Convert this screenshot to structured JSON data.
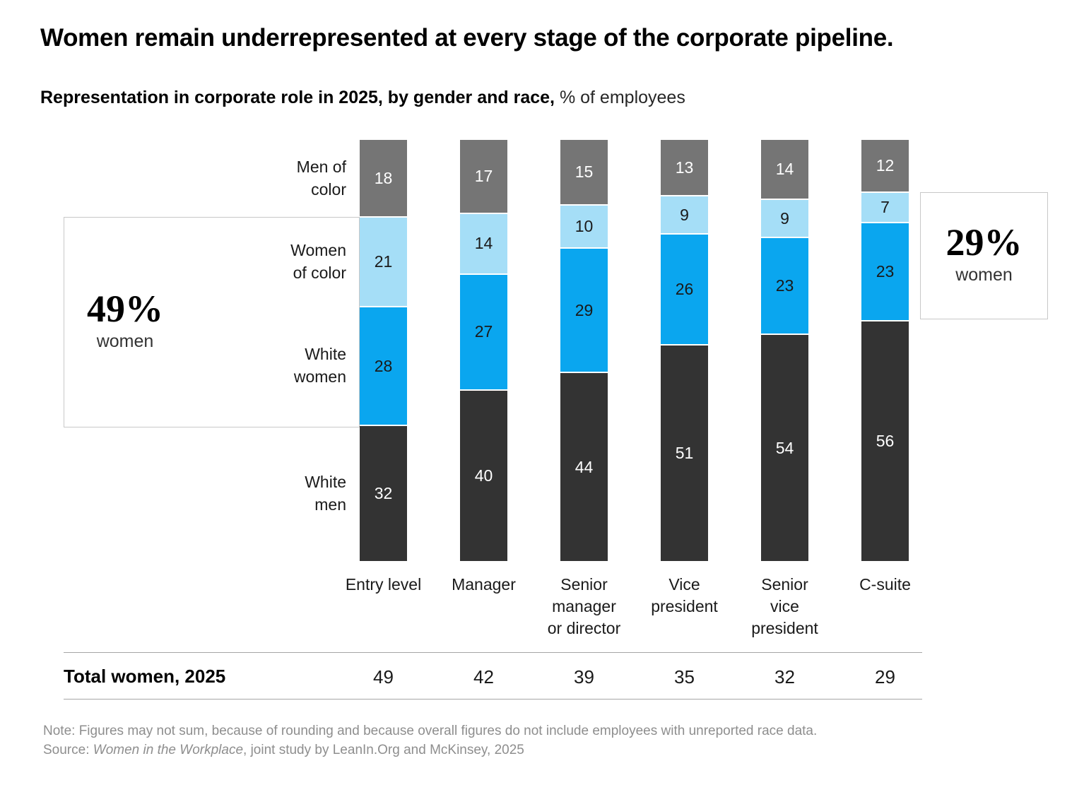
{
  "header": {
    "title": "Women remain underrepresented at every stage of the corporate pipeline.",
    "subtitle_bold": "Representation in corporate role in 2025, by gender and race,",
    "subtitle_regular": " % of employees"
  },
  "callouts": {
    "left": {
      "value": "49%",
      "label": "women"
    },
    "right": {
      "value": "29%",
      "label": "women"
    }
  },
  "chart_data": {
    "type": "bar",
    "stacked": true,
    "value_unit": "% of employees",
    "categories": [
      "Entry level",
      "Manager",
      "Senior manager or director",
      "Vice president",
      "Senior vice president",
      "C-suite"
    ],
    "categories_display": [
      [
        "Entry level"
      ],
      [
        "Manager"
      ],
      [
        "Senior",
        "manager",
        "or director"
      ],
      [
        "Vice",
        "president"
      ],
      [
        "Senior",
        "vice",
        "president"
      ],
      [
        "C-suite"
      ]
    ],
    "series": [
      {
        "name": "Men of color",
        "display_lines": [
          "Men of",
          "color"
        ],
        "color": "#757575",
        "label_color": "#ffffff",
        "values": [
          18,
          17,
          15,
          13,
          14,
          12
        ]
      },
      {
        "name": "Women of color",
        "display_lines": [
          "Women",
          "of color"
        ],
        "color": "#a5def7",
        "label_color": "#1a1a1a",
        "values": [
          21,
          14,
          10,
          9,
          9,
          7
        ]
      },
      {
        "name": "White women",
        "display_lines": [
          "White",
          "women"
        ],
        "color": "#0aa6ef",
        "label_color": "#1a1a1a",
        "values": [
          28,
          27,
          29,
          26,
          23,
          23
        ]
      },
      {
        "name": "White men",
        "display_lines": [
          "White",
          "men"
        ],
        "color": "#333333",
        "label_color": "#ffffff",
        "values": [
          32,
          40,
          44,
          51,
          54,
          56
        ]
      }
    ],
    "legend_position": "labels left of first bar",
    "grid": "off",
    "axis": "none; values labeled on each segment"
  },
  "totals_row": {
    "label": "Total women, 2025",
    "values": [
      "49",
      "42",
      "39",
      "35",
      "32",
      "29"
    ]
  },
  "footnote": {
    "note": "Note: Figures may not sum, because of rounding and because overall figures do not include employees with unreported race data.",
    "source_prefix": "Source: ",
    "source_italic": "Women in the Workplace",
    "source_suffix": ", joint study by LeanIn.Org and McKinsey, 2025"
  },
  "colors": {
    "men_of_color": "#757575",
    "women_of_color": "#a5def7",
    "white_women": "#0aa6ef",
    "white_men": "#333333",
    "rule": "#a6a6a6",
    "callout_border": "#c8c8c8",
    "footnote_text": "#8e8e8e"
  }
}
